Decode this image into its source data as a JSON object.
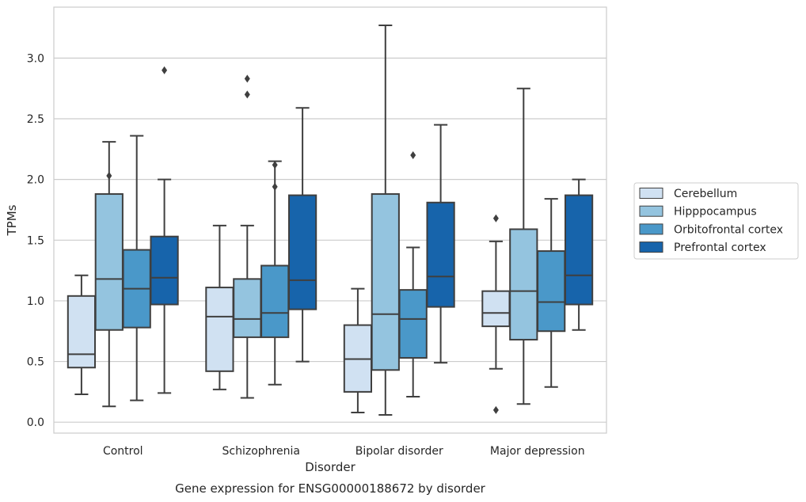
{
  "chart_data": {
    "type": "box",
    "caption": "Gene expression for ENSG00000188672 by disorder",
    "xlabel": "Disorder",
    "ylabel": "TPMs",
    "ylim": [
      -0.09,
      3.42
    ],
    "yticks": [
      "0.0",
      "0.5",
      "1.0",
      "1.5",
      "2.0",
      "2.5",
      "3.0"
    ],
    "grid": true,
    "legend_position": "right, outside plot",
    "categories": [
      "Control",
      "Schizophrenia",
      "Bipolar disorder",
      "Major depression"
    ],
    "series": [
      {
        "name": "Cerebellum",
        "color": "#d0e1f2",
        "boxes": [
          {
            "whisker_low": 0.23,
            "q1": 0.45,
            "median": 0.56,
            "q3": 1.04,
            "whisker_high": 1.21,
            "outliers": []
          },
          {
            "whisker_low": 0.27,
            "q1": 0.42,
            "median": 0.87,
            "q3": 1.11,
            "whisker_high": 1.62,
            "outliers": []
          },
          {
            "whisker_low": 0.08,
            "q1": 0.25,
            "median": 0.52,
            "q3": 0.8,
            "whisker_high": 1.1,
            "outliers": []
          },
          {
            "whisker_low": 0.44,
            "q1": 0.79,
            "median": 0.9,
            "q3": 1.08,
            "whisker_high": 1.49,
            "outliers": [
              1.68,
              0.1
            ]
          }
        ]
      },
      {
        "name": "Hipppocampus",
        "color": "#94c4df",
        "boxes": [
          {
            "whisker_low": 0.13,
            "q1": 0.76,
            "median": 1.18,
            "q3": 1.88,
            "whisker_high": 2.31,
            "outliers": [
              2.03
            ]
          },
          {
            "whisker_low": 0.2,
            "q1": 0.7,
            "median": 0.85,
            "q3": 1.18,
            "whisker_high": 1.62,
            "outliers": [
              2.7,
              2.83
            ]
          },
          {
            "whisker_low": 0.06,
            "q1": 0.43,
            "median": 0.89,
            "q3": 1.88,
            "whisker_high": 3.27,
            "outliers": []
          },
          {
            "whisker_low": 0.15,
            "q1": 0.68,
            "median": 1.08,
            "q3": 1.59,
            "whisker_high": 2.75,
            "outliers": []
          }
        ]
      },
      {
        "name": "Orbitofrontal cortex",
        "color": "#4a98c9",
        "boxes": [
          {
            "whisker_low": 0.18,
            "q1": 0.78,
            "median": 1.1,
            "q3": 1.42,
            "whisker_high": 2.36,
            "outliers": []
          },
          {
            "whisker_low": 0.31,
            "q1": 0.7,
            "median": 0.9,
            "q3": 1.29,
            "whisker_high": 2.15,
            "outliers": [
              2.12,
              1.94
            ]
          },
          {
            "whisker_low": 0.21,
            "q1": 0.53,
            "median": 0.85,
            "q3": 1.09,
            "whisker_high": 1.44,
            "outliers": [
              2.2
            ]
          },
          {
            "whisker_low": 0.29,
            "q1": 0.75,
            "median": 0.99,
            "q3": 1.41,
            "whisker_high": 1.84,
            "outliers": []
          }
        ]
      },
      {
        "name": "Prefrontal cortex",
        "color": "#1764ab",
        "boxes": [
          {
            "whisker_low": 0.24,
            "q1": 0.97,
            "median": 1.19,
            "q3": 1.53,
            "whisker_high": 2.0,
            "outliers": [
              2.9
            ]
          },
          {
            "whisker_low": 0.5,
            "q1": 0.93,
            "median": 1.17,
            "q3": 1.87,
            "whisker_high": 2.59,
            "outliers": []
          },
          {
            "whisker_low": 0.49,
            "q1": 0.95,
            "median": 1.2,
            "q3": 1.81,
            "whisker_high": 2.45,
            "outliers": []
          },
          {
            "whisker_low": 0.76,
            "q1": 0.97,
            "median": 1.21,
            "q3": 1.87,
            "whisker_high": 2.0,
            "outliers": []
          }
        ]
      }
    ]
  }
}
